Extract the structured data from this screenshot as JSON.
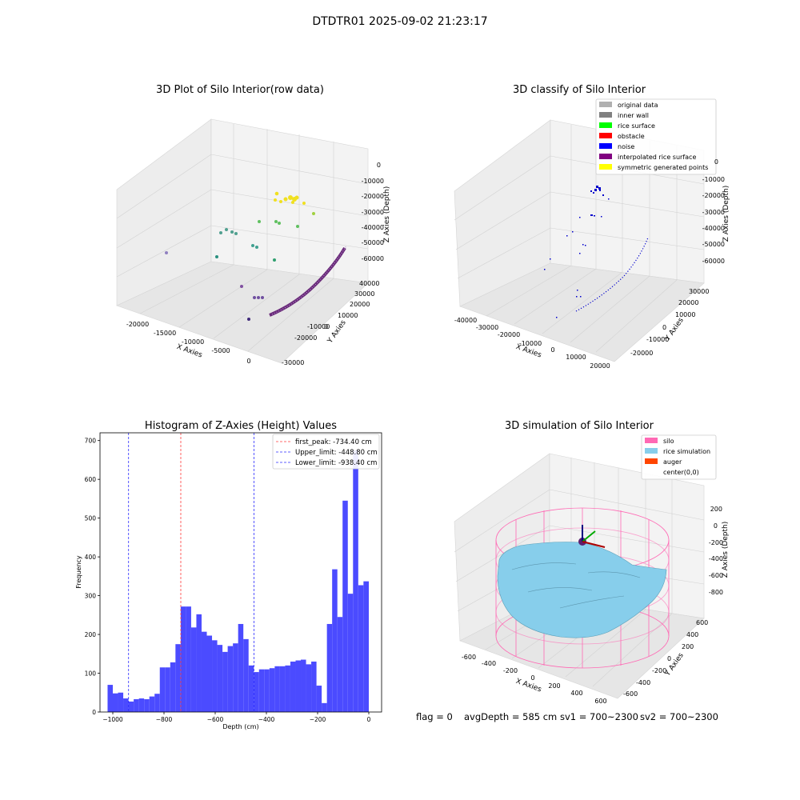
{
  "figure": {
    "suptitle": "DTDTR01 2025-09-02 21:23:17",
    "footer": {
      "flag": "flag = 0",
      "avg_depth": "avgDepth = 585 cm",
      "sv1": "sv1 = 700~2300",
      "sv2": "sv2 = 700~2300"
    }
  },
  "colors": {
    "hist_bar": "#4b4bff",
    "first_peak": "#ff3b3b",
    "limit_line": "#2b2bff",
    "pane": "#f2f2f2",
    "pane_side": "#e8e8e8",
    "grid": "#d0d0d0",
    "silo": "#ff69b4",
    "rice": "#87ceeb",
    "auger": "#ff4500",
    "raw_path": "#6a2a7a",
    "noise": "#0000cc"
  },
  "panels": {
    "raw": {
      "title": "3D Plot of Silo Interior(row data)",
      "x_label": "X Axies",
      "y_label": "Y Axies",
      "z_label": "Z Axies (Depth)",
      "x_ticks": [
        "-20000",
        "-15000",
        "-10000",
        "-5000",
        "0"
      ],
      "y_ticks": [
        "-30000",
        "-20000",
        "-10000",
        "0",
        "10000",
        "20000",
        "30000",
        "40000"
      ],
      "z_ticks": [
        "0",
        "-10000",
        "-20000",
        "-30000",
        "-40000",
        "-50000",
        "-60000"
      ]
    },
    "classify": {
      "title": "3D classify of Silo Interior",
      "x_label": "X Axies",
      "y_label": "Y Axies",
      "z_label": "Z Axies (Depth)",
      "x_ticks": [
        "-40000",
        "-30000",
        "-20000",
        "-10000",
        "0",
        "10000",
        "20000"
      ],
      "y_ticks": [
        "-20000",
        "-10000",
        "0",
        "10000",
        "20000",
        "30000"
      ],
      "z_ticks": [
        "0",
        "-10000",
        "-20000",
        "-30000",
        "-40000",
        "-50000",
        "-60000"
      ],
      "legend": [
        {
          "label": "original data",
          "color": "#b0b0b0"
        },
        {
          "label": "inner wall",
          "color": "#808080"
        },
        {
          "label": "rice surface",
          "color": "#00ff00"
        },
        {
          "label": "obstacle",
          "color": "#ff0000"
        },
        {
          "label": "noise",
          "color": "#0000ff"
        },
        {
          "label": "interpolated rice surface",
          "color": "#800080"
        },
        {
          "label": "symmetric generated points",
          "color": "#ffff00"
        }
      ]
    },
    "simulation": {
      "title": "3D simulation of Silo Interior",
      "x_label": "X Axies",
      "y_label": "Y Axies",
      "z_label": "Z Axies (Depth)",
      "x_ticks": [
        "-600",
        "-400",
        "-200",
        "0",
        "200",
        "400",
        "600"
      ],
      "y_ticks": [
        "-600",
        "-400",
        "-200",
        "0",
        "200",
        "400",
        "600"
      ],
      "z_ticks": [
        "200",
        "0",
        "-200",
        "-400",
        "-600",
        "-800"
      ],
      "legend": [
        {
          "label": "silo",
          "color": "#ff69b4"
        },
        {
          "label": "rice simulation",
          "color": "#87ceeb"
        },
        {
          "label": "auger",
          "color": "#ff4500"
        },
        {
          "label": "center(0,0)",
          "color": ""
        }
      ]
    }
  },
  "chart_data": [
    {
      "type": "bar",
      "title": "Histogram of Z-Axies (Height) Values",
      "xlabel": "Depth (cm)",
      "ylabel": "Frequency",
      "xlim": [
        -1050,
        50
      ],
      "ylim": [
        0,
        720
      ],
      "x_ticks": [
        -1000,
        -800,
        -600,
        -400,
        -200,
        0
      ],
      "y_ticks": [
        0,
        100,
        200,
        300,
        400,
        500,
        600,
        700
      ],
      "bin_edges": [
        -1020.4,
        -1000.0,
        -979.6,
        -959.2,
        -938.8,
        -918.4,
        -898.0,
        -877.6,
        -857.2,
        -836.8,
        -816.4,
        -796.0,
        -775.6,
        -755.2,
        -734.8,
        -714.4,
        -694.0,
        -673.6,
        -653.2,
        -632.8,
        -612.4,
        -592.0,
        -571.6,
        -551.2,
        -530.8,
        -510.4,
        -490.0,
        -469.6,
        -449.2,
        -428.8,
        -408.4,
        -388.0,
        -367.6,
        -347.2,
        -326.8,
        -306.4,
        -286.0,
        -265.6,
        -245.2,
        -224.8,
        -204.4,
        -184.0,
        -163.6,
        -143.2,
        -122.8,
        -102.4,
        -82.0,
        -61.6,
        -41.2,
        -20.8,
        0.0
      ],
      "values": [
        70,
        48,
        50,
        35,
        27,
        33,
        35,
        33,
        40,
        47,
        115,
        115,
        128,
        175,
        272,
        272,
        218,
        252,
        207,
        197,
        185,
        173,
        155,
        170,
        177,
        227,
        188,
        120,
        103,
        110,
        110,
        113,
        118,
        118,
        120,
        130,
        133,
        135,
        123,
        130,
        68,
        23,
        227,
        368,
        245,
        545,
        305,
        675,
        327,
        337
      ],
      "lines": [
        {
          "name": "first_peak: -734.40 cm",
          "x": -734.4,
          "color": "#ff3b3b"
        },
        {
          "name": "Upper_limit: -448.80 cm",
          "x": -448.8,
          "color": "#2b2bff"
        },
        {
          "name": "Lower_limit: -938.40 cm",
          "x": -938.4,
          "color": "#2b2bff"
        }
      ],
      "legend_position": "upper right"
    }
  ]
}
